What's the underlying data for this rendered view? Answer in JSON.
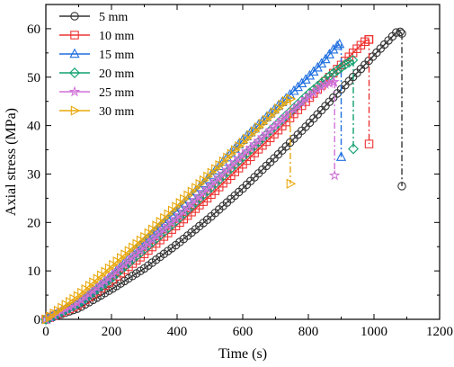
{
  "chart_data": {
    "type": "line",
    "xlabel": "Time (s)",
    "ylabel": "Axial stress (MPa)",
    "xlim": [
      0,
      1200
    ],
    "ylim": [
      0,
      65
    ],
    "xticks": [
      0,
      200,
      400,
      600,
      800,
      1000,
      1200
    ],
    "yticks": [
      0,
      10,
      20,
      30,
      40,
      50,
      60
    ],
    "grid": false,
    "legend_position": "top-left",
    "series": [
      {
        "name": "5 mm",
        "color": "#333333",
        "marker": "circle",
        "x": [
          0,
          100,
          200,
          300,
          400,
          500,
          600,
          700,
          800,
          900,
          1000,
          1050,
          1075,
          1085
        ],
        "y": [
          0,
          2.3,
          6.2,
          10.5,
          15.5,
          21.0,
          27.0,
          33.5,
          40.3,
          47.5,
          54.5,
          58.0,
          59.7,
          59.0
        ],
        "drop": {
          "x": 1085,
          "from": 59.0,
          "to": 27.5
        }
      },
      {
        "name": "10 mm",
        "color": "#ee3333",
        "marker": "square",
        "x": [
          0,
          100,
          200,
          300,
          400,
          500,
          600,
          700,
          800,
          900,
          950,
          975,
          985
        ],
        "y": [
          0,
          3.0,
          8.0,
          13.5,
          19.5,
          25.5,
          32.0,
          38.5,
          45.5,
          52.5,
          56.0,
          57.5,
          57.8
        ],
        "drop": {
          "x": 985,
          "from": 57.8,
          "to": 36.2
        }
      },
      {
        "name": "15 mm",
        "color": "#1f6fe0",
        "marker": "triangle-up",
        "x": [
          0,
          100,
          200,
          300,
          400,
          500,
          600,
          700,
          800,
          850,
          880,
          895
        ],
        "y": [
          0,
          3.5,
          9.0,
          16.0,
          22.5,
          29.5,
          37.0,
          43.5,
          50.0,
          53.5,
          56.0,
          56.8
        ],
        "drop": {
          "x": 900,
          "from": 56.8,
          "to": 33.5
        }
      },
      {
        "name": "20 mm",
        "color": "#12a070",
        "marker": "diamond",
        "x": [
          0,
          100,
          200,
          300,
          400,
          500,
          600,
          700,
          800,
          870,
          910,
          935
        ],
        "y": [
          0,
          3.3,
          8.5,
          14.5,
          20.5,
          27.0,
          33.5,
          40.0,
          46.5,
          50.5,
          52.5,
          53.5
        ],
        "drop": {
          "x": 937,
          "from": 53.5,
          "to": 35.2
        }
      },
      {
        "name": "25 mm",
        "color": "#d070d8",
        "marker": "star",
        "x": [
          0,
          100,
          200,
          300,
          400,
          500,
          600,
          700,
          800,
          850,
          878
        ],
        "y": [
          0,
          3.5,
          9.0,
          15.0,
          21.0,
          27.5,
          34.0,
          40.0,
          46.0,
          48.5,
          49.0
        ],
        "drop": {
          "x": 880,
          "from": 49.0,
          "to": 29.7
        }
      },
      {
        "name": "30 mm",
        "color": "#e8a80c",
        "marker": "triangle-right",
        "x": [
          0,
          100,
          200,
          300,
          400,
          500,
          600,
          700,
          730,
          745
        ],
        "y": [
          0,
          5.0,
          11.0,
          17.0,
          23.5,
          30.0,
          36.5,
          43.0,
          45.0,
          45.5
        ],
        "drop": {
          "x": 745,
          "from": 45.5,
          "to": 28.0
        }
      }
    ]
  }
}
